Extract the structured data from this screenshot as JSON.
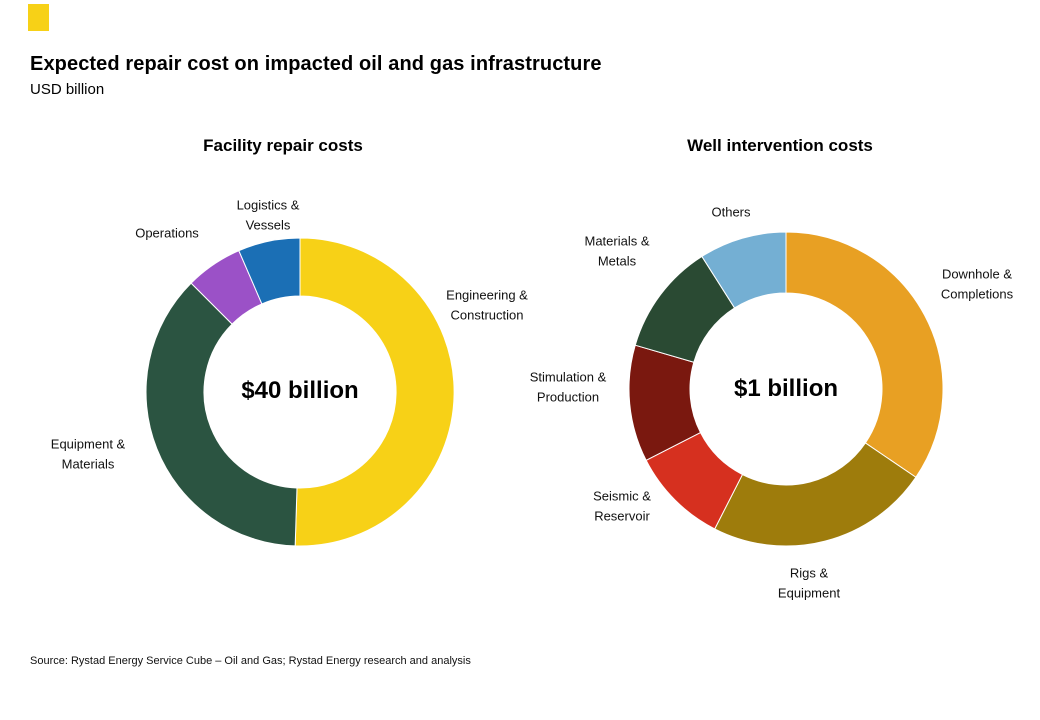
{
  "page": {
    "title": "Expected repair cost on impacted oil and gas infrastructure",
    "subtitle": "USD billion",
    "source": "Source: Rystad Energy Service Cube – Oil and Gas; Rystad Energy research and analysis",
    "brand_square_color": "#F7D117"
  },
  "chart_data": [
    {
      "type": "pie",
      "variant": "donut",
      "title": "Facility repair costs",
      "center_label": "$40 billion",
      "total_label": "$40 billion",
      "legend_position": "outside-labels",
      "segments": [
        {
          "label": "Engineering & Construction",
          "value": 50.5,
          "color": "#F7D117"
        },
        {
          "label": "Equipment & Materials",
          "value": 37.0,
          "color": "#2B5441"
        },
        {
          "label": "Operations",
          "value": 6.0,
          "color": "#9B51C7"
        },
        {
          "label": "Logistics & Vessels",
          "value": 6.5,
          "color": "#1B6FB5"
        }
      ]
    },
    {
      "type": "pie",
      "variant": "donut",
      "title": "Well intervention costs",
      "center_label": "$1 billion",
      "total_label": "$1 billion",
      "legend_position": "outside-labels",
      "segments": [
        {
          "label": "Downhole & Completions",
          "value": 34.5,
          "color": "#E8A023"
        },
        {
          "label": "Rigs & Equipment",
          "value": 23.0,
          "color": "#9E7C0C"
        },
        {
          "label": "Seismic & Reservoir",
          "value": 10.0,
          "color": "#D6301F"
        },
        {
          "label": "Stimulation & Production",
          "value": 12.0,
          "color": "#7A180F"
        },
        {
          "label": "Materials & Metals",
          "value": 11.5,
          "color": "#2A4A33"
        },
        {
          "label": "Others",
          "value": 9.0,
          "color": "#74AFD3"
        }
      ]
    }
  ]
}
